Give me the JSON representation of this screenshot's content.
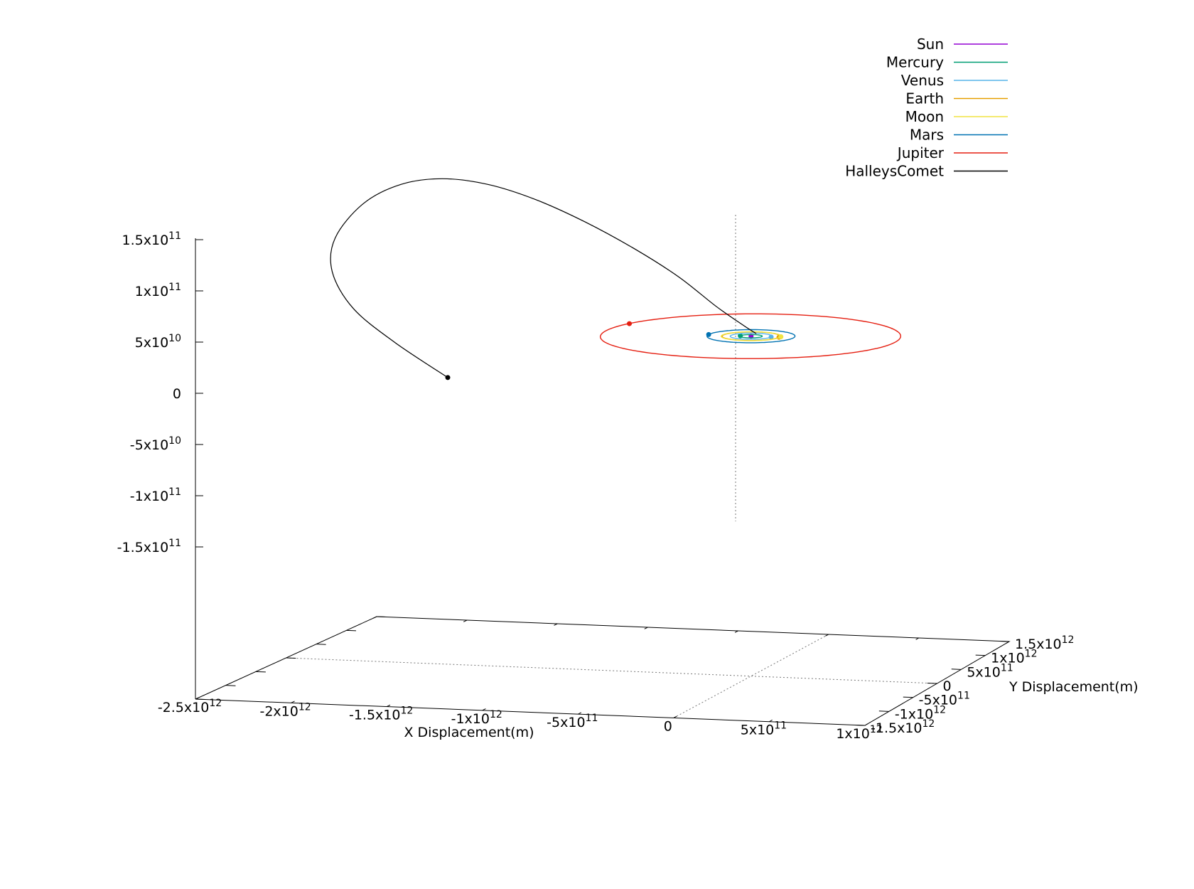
{
  "chart_data": {
    "type": "line",
    "projection": "3d",
    "xlabel": "X Displacement(m)",
    "ylabel": "Y Displacement(m)",
    "zlabel": "",
    "xlim": [
      -2500000000000.0,
      1000000000000.0
    ],
    "ylim": [
      -1500000000000.0,
      1500000000000.0
    ],
    "zlim": [
      -150000000000.0,
      150000000000.0
    ],
    "legend_position": "top-right",
    "grid": false,
    "x_ticks": [
      {
        "value": -2500000000000.0,
        "mant": "-2.5x10",
        "exp": "12"
      },
      {
        "value": -2000000000000.0,
        "mant": "-2x10",
        "exp": "12"
      },
      {
        "value": -1500000000000.0,
        "mant": "-1.5x10",
        "exp": "12"
      },
      {
        "value": -1000000000000.0,
        "mant": "-1x10",
        "exp": "12"
      },
      {
        "value": -500000000000.0,
        "mant": "-5x10",
        "exp": "11"
      },
      {
        "value": 0,
        "mant": "0",
        "exp": ""
      },
      {
        "value": 500000000000.0,
        "mant": "5x10",
        "exp": "11"
      },
      {
        "value": 1000000000000.0,
        "mant": "1x10",
        "exp": "12"
      }
    ],
    "y_ticks": [
      {
        "value": -1500000000000.0,
        "mant": "-1.5x10",
        "exp": "12"
      },
      {
        "value": -1000000000000.0,
        "mant": "-1x10",
        "exp": "12"
      },
      {
        "value": -500000000000.0,
        "mant": "-5x10",
        "exp": "11"
      },
      {
        "value": 0,
        "mant": "0",
        "exp": ""
      },
      {
        "value": 500000000000.0,
        "mant": "5x10",
        "exp": "11"
      },
      {
        "value": 1000000000000.0,
        "mant": "1x10",
        "exp": "12"
      },
      {
        "value": 1500000000000.0,
        "mant": "1.5x10",
        "exp": "12"
      }
    ],
    "z_ticks": [
      {
        "value": 150000000000.0,
        "mant": "1.5x10",
        "exp": "11"
      },
      {
        "value": 100000000000.0,
        "mant": "1x10",
        "exp": "11"
      },
      {
        "value": 50000000000.0,
        "mant": "5x10",
        "exp": "10"
      },
      {
        "value": 0,
        "mant": "0",
        "exp": ""
      },
      {
        "value": -50000000000.0,
        "mant": "-5x10",
        "exp": "10"
      },
      {
        "value": -100000000000.0,
        "mant": "-1x10",
        "exp": "11"
      },
      {
        "value": -150000000000.0,
        "mant": "-1.5x10",
        "exp": "11"
      }
    ],
    "series": [
      {
        "name": "Sun",
        "color": "#9400d3",
        "orbit": {
          "cx": 0,
          "cy": 0,
          "a": 0,
          "b": 0,
          "z": 0
        },
        "marker": {
          "x": 0,
          "y": 0,
          "z": 0
        }
      },
      {
        "name": "Mercury",
        "color": "#009e73",
        "orbit": {
          "cx": 0,
          "cy": 0,
          "a": 58000000000.0,
          "b": 57000000000.0,
          "z": 0
        },
        "marker": {
          "x": -58000000000.0,
          "y": 0,
          "z": 0
        }
      },
      {
        "name": "Venus",
        "color": "#56b4e9",
        "orbit": {
          "cx": 0,
          "cy": 0,
          "a": 108000000000.0,
          "b": 108000000000.0,
          "z": 0
        },
        "marker": {
          "x": 108000000000.0,
          "y": 0,
          "z": 0
        }
      },
      {
        "name": "Earth",
        "color": "#e69f00",
        "orbit": {
          "cx": 0,
          "cy": 0,
          "a": 150000000000.0,
          "b": 150000000000.0,
          "z": 0
        },
        "marker": {
          "x": 150000000000.0,
          "y": 0,
          "z": 0
        }
      },
      {
        "name": "Moon",
        "color": "#f0e442",
        "orbit": {
          "cx": 0,
          "cy": 0,
          "a": 155000000000.0,
          "b": 155000000000.0,
          "z": 0
        },
        "marker": {
          "x": 155000000000.0,
          "y": 20000000000.0,
          "z": 0
        }
      },
      {
        "name": "Mars",
        "color": "#0072b2",
        "orbit": {
          "cx": 0,
          "cy": 0,
          "a": 228000000000.0,
          "b": 228000000000.0,
          "z": 0
        },
        "marker": {
          "x": -228000000000.0,
          "y": 0,
          "z": 0
        }
      },
      {
        "name": "Jupiter",
        "color": "#e51e10",
        "orbit": {
          "cx": 0,
          "cy": 0,
          "a": 778000000000.0,
          "b": 778000000000.0,
          "z": 0
        },
        "marker": {
          "x": -730000000000.0,
          "y": 260000000000.0,
          "z": 0
        }
      },
      {
        "name": "HalleysComet",
        "color": "#000000",
        "points": [
          [
            25000000000.0,
            10000000000.0,
            2400000000.0
          ],
          [
            -12000000000.0,
            -100000000000.0,
            13000000000.0
          ],
          [
            -110000000000.0,
            -280000000000.0,
            36000000000.0
          ],
          [
            -260000000000.0,
            -450000000000.0,
            68000000000.0
          ],
          [
            -440000000000.0,
            -620000000000.0,
            98000000000.0
          ],
          [
            -680000000000.0,
            -740000000000.0,
            127000000000.0
          ],
          [
            -930000000000.0,
            -780000000000.0,
            148000000000.0
          ],
          [
            -1190000000000.0,
            -750000000000.0,
            160000000000.0
          ],
          [
            -1450000000000.0,
            -690000000000.0,
            162000000000.0
          ],
          [
            -1700000000000.0,
            -590000000000.0,
            152000000000.0
          ],
          [
            -1940000000000.0,
            -460000000000.0,
            128000000000.0
          ],
          [
            -2140000000000.0,
            -300000000000.0,
            89000000000.0
          ],
          [
            -2220000000000.0,
            -100000000000.0,
            50000000000.0
          ],
          [
            -2180000000000.0,
            130000000000.0,
            8000000000.0
          ],
          [
            -2020000000000.0,
            340000000000.0,
            -30000000000.0
          ],
          [
            -1780000000000.0,
            480000000000.0,
            -66000000000.0
          ]
        ],
        "marker": {
          "x": -1780000000000.0,
          "y": 480000000000.0,
          "z": -66000000000.0
        }
      }
    ]
  }
}
